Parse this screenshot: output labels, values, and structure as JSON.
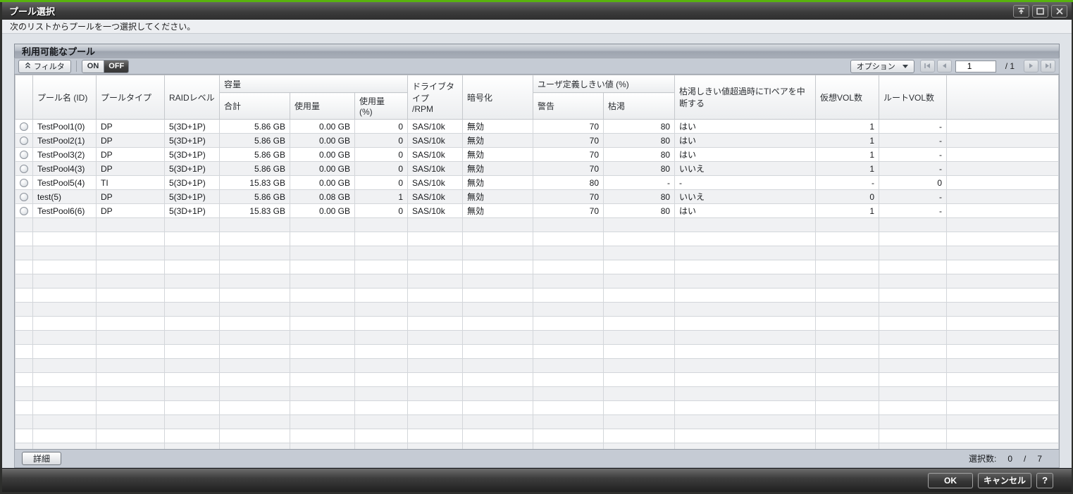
{
  "window": {
    "title": "プール選択",
    "instruction": "次のリストからプールを一つ選択してください。"
  },
  "panel": {
    "title": "利用可能なプール",
    "toolbar": {
      "filter_label": "フィルタ",
      "on_label": "ON",
      "off_label": "OFF",
      "options_label": "オプション",
      "pagination": {
        "current_page": "1",
        "total_pages": "/ 1"
      }
    },
    "table": {
      "group_headers": {
        "capacity": "容量",
        "user_threshold": "ユーザ定義しきい値 (%)"
      },
      "columns": {
        "pool_name": "プール名 (ID)",
        "pool_type": "プールタイプ",
        "raid_level": "RAIDレベル",
        "total": "合計",
        "used": "使用量",
        "used_pct": "使用量\n(%)",
        "drive_type": "ドライブタイプ\n/RPM",
        "encryption": "暗号化",
        "warning": "警告",
        "depletion": "枯渇",
        "suspend_ti": "枯渇しきい値超過時にTIペアを中断する",
        "virtual_vols": "仮想VOL数",
        "root_vols": "ルートVOL数"
      },
      "rows": [
        {
          "pool_name": "TestPool1(0)",
          "pool_type": "DP",
          "raid_level": "5(3D+1P)",
          "total": "5.86 GB",
          "used": "0.00 GB",
          "used_pct": "0",
          "drive_type": "SAS/10k",
          "encryption": "無効",
          "warning": "70",
          "depletion": "80",
          "suspend_ti": "はい",
          "virtual_vols": "1",
          "root_vols": "-"
        },
        {
          "pool_name": "TestPool2(1)",
          "pool_type": "DP",
          "raid_level": "5(3D+1P)",
          "total": "5.86 GB",
          "used": "0.00 GB",
          "used_pct": "0",
          "drive_type": "SAS/10k",
          "encryption": "無効",
          "warning": "70",
          "depletion": "80",
          "suspend_ti": "はい",
          "virtual_vols": "1",
          "root_vols": "-"
        },
        {
          "pool_name": "TestPool3(2)",
          "pool_type": "DP",
          "raid_level": "5(3D+1P)",
          "total": "5.86 GB",
          "used": "0.00 GB",
          "used_pct": "0",
          "drive_type": "SAS/10k",
          "encryption": "無効",
          "warning": "70",
          "depletion": "80",
          "suspend_ti": "はい",
          "virtual_vols": "1",
          "root_vols": "-"
        },
        {
          "pool_name": "TestPool4(3)",
          "pool_type": "DP",
          "raid_level": "5(3D+1P)",
          "total": "5.86 GB",
          "used": "0.00 GB",
          "used_pct": "0",
          "drive_type": "SAS/10k",
          "encryption": "無効",
          "warning": "70",
          "depletion": "80",
          "suspend_ti": "いいえ",
          "virtual_vols": "1",
          "root_vols": "-"
        },
        {
          "pool_name": "TestPool5(4)",
          "pool_type": "TI",
          "raid_level": "5(3D+1P)",
          "total": "15.83 GB",
          "used": "0.00 GB",
          "used_pct": "0",
          "drive_type": "SAS/10k",
          "encryption": "無効",
          "warning": "80",
          "depletion": "-",
          "suspend_ti": "-",
          "virtual_vols": "-",
          "root_vols": "0"
        },
        {
          "pool_name": "test(5)",
          "pool_type": "DP",
          "raid_level": "5(3D+1P)",
          "total": "5.86 GB",
          "used": "0.08 GB",
          "used_pct": "1",
          "drive_type": "SAS/10k",
          "encryption": "無効",
          "warning": "70",
          "depletion": "80",
          "suspend_ti": "いいえ",
          "virtual_vols": "0",
          "root_vols": "-"
        },
        {
          "pool_name": "TestPool6(6)",
          "pool_type": "DP",
          "raid_level": "5(3D+1P)",
          "total": "15.83 GB",
          "used": "0.00 GB",
          "used_pct": "0",
          "drive_type": "SAS/10k",
          "encryption": "無効",
          "warning": "70",
          "depletion": "80",
          "suspend_ti": "はい",
          "virtual_vols": "1",
          "root_vols": "-"
        }
      ],
      "empty_row_count": 17
    },
    "footer": {
      "detail_label": "詳細",
      "selection_label": "選択数:",
      "selected_count": "0",
      "separator": "/",
      "total_count": "7"
    }
  },
  "dialog_footer": {
    "ok_label": "OK",
    "cancel_label": "キャンセル",
    "help_label": "?"
  },
  "icons": {
    "titlebar": [
      "rollup-icon",
      "maximize-icon",
      "close-icon"
    ],
    "filter": "filter-chevrons-up-icon",
    "options": "chevron-down-icon",
    "pagination": [
      "first-page-icon",
      "prev-page-icon",
      "next-page-icon",
      "last-page-icon"
    ]
  },
  "colors": {
    "accent_green": "#58b30e",
    "titlebar_dark": "#3c3c3c",
    "panel_band": "#c5cbd4",
    "row_alt": "#f0f1f3",
    "body_bg": "#dfe3e8"
  }
}
